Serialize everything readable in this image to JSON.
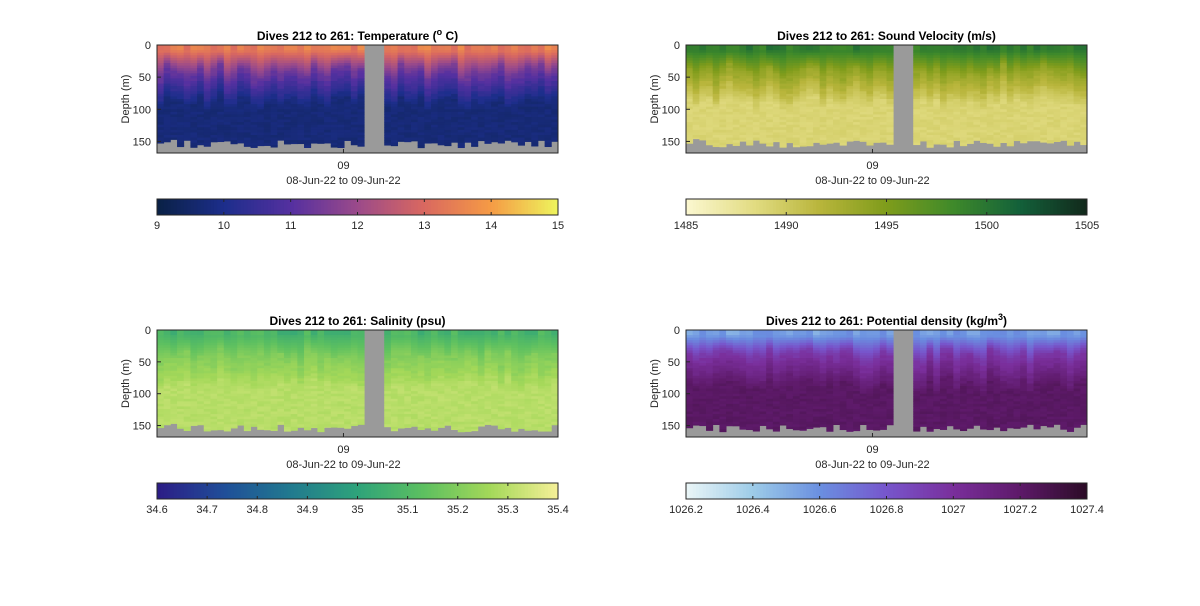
{
  "chart_data": [
    {
      "type": "heatmap",
      "title_main": "Dives 212 to 261: Temperature (",
      "title_sup": "o",
      "title_tail": " C)",
      "ylabel": "Depth (m)",
      "yticks": [
        0,
        50,
        100,
        150
      ],
      "ylim": [
        0,
        168
      ],
      "xtick": "09",
      "xlabel": "08-Jun-22 to 09-Jun-22",
      "colorbar_ticks": [
        "9",
        "10",
        "11",
        "12",
        "13",
        "14",
        "15"
      ],
      "colorbar_range": [
        9,
        15
      ],
      "colormap": [
        "#0a2147",
        "#1d2e8c",
        "#5530a0",
        "#9b4a8a",
        "#d96860",
        "#f59a45",
        "#eef25c"
      ],
      "surface_value": 13.4,
      "thermocline_value": 11.4,
      "deep_value": 9.7
    },
    {
      "type": "heatmap",
      "title_main": "Dives 212 to 261: Sound Velocity (m/s)",
      "title_sup": "",
      "title_tail": "",
      "ylabel": "Depth (m)",
      "yticks": [
        0,
        50,
        100,
        150
      ],
      "ylim": [
        0,
        168
      ],
      "xtick": "09",
      "xlabel": "08-Jun-22 to 09-Jun-22",
      "colorbar_ticks": [
        "1485",
        "1490",
        "1495",
        "1500",
        "1505"
      ],
      "colorbar_range": [
        1485,
        1505
      ],
      "colormap": [
        "#fbf7cf",
        "#e2dc82",
        "#b8b53b",
        "#7f9c1b",
        "#3f8a2a",
        "#13613a",
        "#122a1c"
      ],
      "surface_value": 1499.5,
      "thermocline_value": 1494,
      "deep_value": 1489
    },
    {
      "type": "heatmap",
      "title_main": "Dives 212 to 261: Salinity (psu)",
      "title_sup": "",
      "title_tail": "",
      "ylabel": "Depth (m)",
      "yticks": [
        0,
        50,
        100,
        150
      ],
      "ylim": [
        0,
        168
      ],
      "xtick": "09",
      "xlabel": "08-Jun-22 to 09-Jun-22",
      "colorbar_ticks": [
        "34.6",
        "34.7",
        "34.8",
        "34.9",
        "35",
        "35.1",
        "35.2",
        "35.3",
        "35.4"
      ],
      "colorbar_range": [
        34.6,
        35.4
      ],
      "colormap": [
        "#2c1d86",
        "#1f4f99",
        "#217a8f",
        "#2ea37a",
        "#5dc060",
        "#a4d859",
        "#f3ef96"
      ],
      "surface_value": 35.08,
      "thermocline_value": 35.2,
      "deep_value": 35.3
    },
    {
      "type": "heatmap",
      "title_main": "Dives 212 to 261: Potential density (kg/m",
      "title_sup": "3",
      "title_tail": ")",
      "ylabel": "Depth (m)",
      "yticks": [
        0,
        50,
        100,
        150
      ],
      "ylim": [
        0,
        168
      ],
      "xtick": "09",
      "xlabel": "08-Jun-22 to 09-Jun-22",
      "colorbar_ticks": [
        "1026.2",
        "1026.4",
        "1026.6",
        "1026.8",
        "1027",
        "1027.2",
        "1027.4"
      ],
      "colorbar_range": [
        1026.2,
        1027.4
      ],
      "colormap": [
        "#e9f5f7",
        "#9ccbe8",
        "#6a8fe0",
        "#7756cc",
        "#7a2f9c",
        "#5e1a6a",
        "#2d0c28"
      ],
      "surface_value": 1026.55,
      "thermocline_value": 1026.95,
      "deep_value": 1027.22
    }
  ]
}
